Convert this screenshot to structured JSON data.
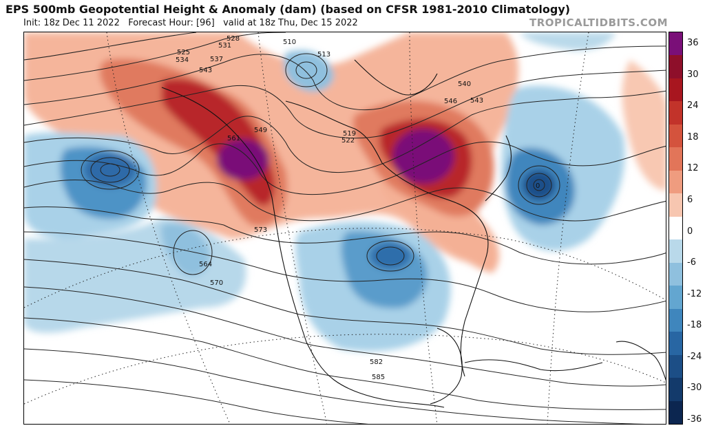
{
  "header": {
    "title": "EPS 500mb Geopotential Height & Anomaly (dam) (based on CFSR 1981-2010 Climatology)",
    "init": "Init: 18z Dec 11 2022",
    "forecast_hour": "Forecast Hour: [96]",
    "valid": "valid at 18z Thu, Dec 15 2022",
    "brand": "TROPICALTIDBITS.COM"
  },
  "colorbar": {
    "labels": [
      "36",
      "30",
      "24",
      "18",
      "12",
      "6",
      "0",
      "-6",
      "-12",
      "-18",
      "-24",
      "-30",
      "-36"
    ],
    "colors": [
      "#7a0f78",
      "#8e0f2a",
      "#a8161f",
      "#c2332a",
      "#d4533d",
      "#e27559",
      "#ef9c7f",
      "#f7c6b0",
      "#ffffff",
      "#b9d9ea",
      "#8fc0de",
      "#63a6d0",
      "#3f86bd",
      "#2866a3",
      "#1c4e86",
      "#133a6b",
      "#0c2650"
    ]
  },
  "map": {
    "contour_labels": [
      "528",
      "531",
      "525",
      "534",
      "537",
      "543",
      "510",
      "513",
      "540",
      "546",
      "543",
      "519",
      "522",
      "549",
      "561",
      "573",
      "564",
      "570",
      "582",
      "585",
      "0"
    ],
    "anomaly_features": [
      {
        "name": "eastern-canada-ridge",
        "anomaly": 36
      },
      {
        "name": "pacific-northwest-ridge",
        "anomaly": 36
      },
      {
        "name": "north-pacific-trough",
        "anomaly": -24
      },
      {
        "name": "central-us-trough",
        "anomaly": -24
      },
      {
        "name": "north-atlantic-trough",
        "anomaly": -30
      }
    ]
  }
}
